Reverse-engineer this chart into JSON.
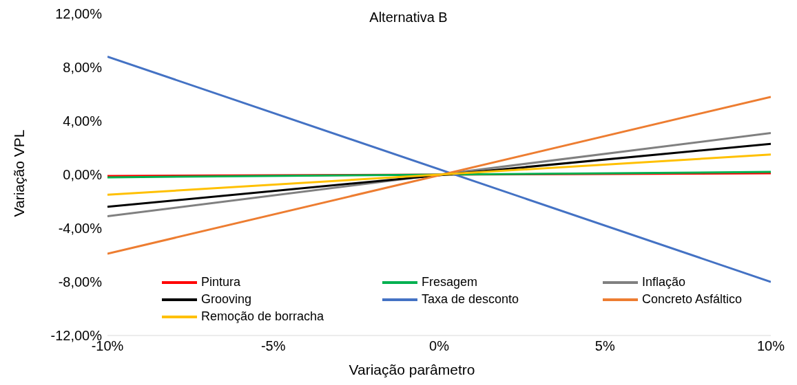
{
  "chart_data": {
    "type": "line",
    "title": "Alternativa B",
    "xlabel": "Variação parâmetro",
    "ylabel": "Variação VPL",
    "x": [
      -10,
      10
    ],
    "series": [
      {
        "name": "Pintura",
        "color": "#ff0000",
        "values": [
          -0.1,
          0.1
        ]
      },
      {
        "name": "Fresagem",
        "color": "#00b050",
        "values": [
          -0.2,
          0.2
        ]
      },
      {
        "name": "Inflação",
        "color": "#808080",
        "values": [
          -3.1,
          3.1
        ]
      },
      {
        "name": "Grooving",
        "color": "#000000",
        "values": [
          -2.4,
          2.3
        ]
      },
      {
        "name": "Taxa de desconto",
        "color": "#4472c4",
        "values": [
          8.8,
          -8.0
        ]
      },
      {
        "name": "Concreto Asfáltico",
        "color": "#ed7d31",
        "values": [
          -5.9,
          5.8
        ]
      },
      {
        "name": "Remoção de borracha",
        "color": "#ffc000",
        "values": [
          -1.5,
          1.5
        ]
      }
    ],
    "xlim": [
      -10,
      10
    ],
    "xticks": [
      {
        "value": -10,
        "label": "-10%"
      },
      {
        "value": -5,
        "label": "-5%"
      },
      {
        "value": 0,
        "label": "0%"
      },
      {
        "value": 5,
        "label": "5%"
      },
      {
        "value": 10,
        "label": "10%"
      }
    ],
    "ylim": [
      -12,
      12
    ],
    "yticks": [
      {
        "value": -12,
        "label": "-12,00%"
      },
      {
        "value": -8,
        "label": "-8,00%"
      },
      {
        "value": -4,
        "label": "-4,00%"
      },
      {
        "value": 0,
        "label": "0,00%"
      },
      {
        "value": 4,
        "label": "4,00%"
      },
      {
        "value": 8,
        "label": "8,00%"
      },
      {
        "value": 12,
        "label": "12,00%"
      }
    ],
    "grid": false,
    "legend": "bottom",
    "marker": "none",
    "line_style": "solid"
  }
}
